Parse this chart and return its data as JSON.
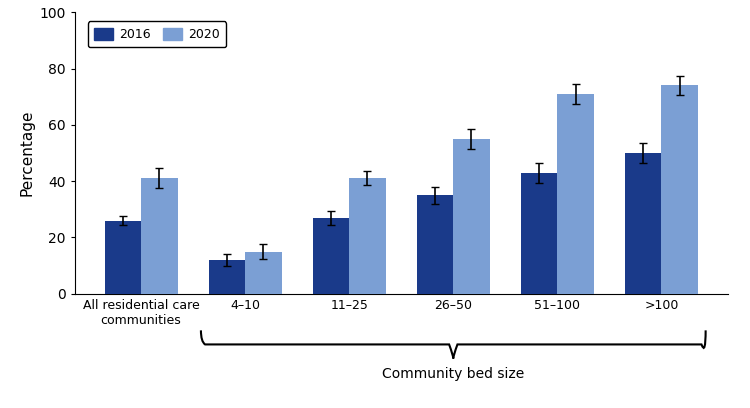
{
  "categories": [
    "All residential care\ncommunities",
    "4–10",
    "11–25",
    "26–50",
    "51–100",
    ">100"
  ],
  "values_2016": [
    26,
    12,
    27,
    35,
    43,
    50
  ],
  "values_2020": [
    41,
    15,
    41,
    55,
    71,
    74
  ],
  "err_2016": [
    1.5,
    2.0,
    2.5,
    3.0,
    3.5,
    3.5
  ],
  "err_2020": [
    3.5,
    2.5,
    2.5,
    3.5,
    3.5,
    3.5
  ],
  "color_2016": "#1a3a8a",
  "color_2020": "#7b9fd4",
  "ylabel": "Percentage",
  "ylim": [
    0,
    100
  ],
  "yticks": [
    0,
    20,
    40,
    60,
    80,
    100
  ],
  "legend_labels": [
    "2016",
    "2020"
  ],
  "brace_label": "Community bed size",
  "bar_width": 0.35
}
